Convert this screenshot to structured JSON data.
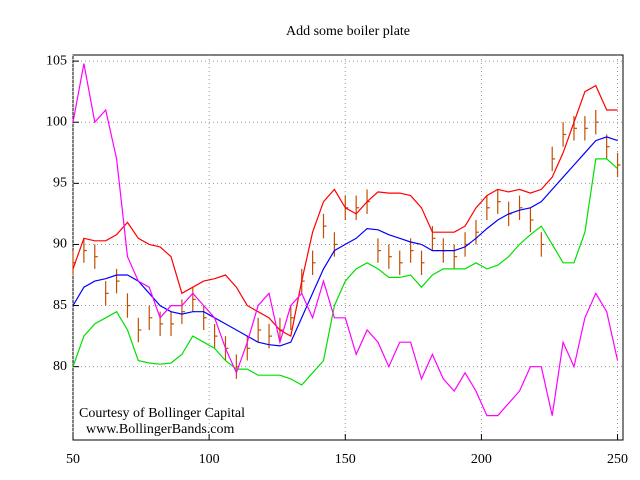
{
  "chart_data": {
    "type": "line",
    "title": "Add some boiler plate",
    "annotations": [
      "Courtesy of Bollinger Capital",
      "www.BollingerBands.com"
    ],
    "xlim": [
      50,
      252
    ],
    "xticks": [
      50,
      100,
      150,
      200,
      250
    ],
    "ylim": [
      74,
      105.5
    ],
    "yticks": [
      80,
      85,
      90,
      95,
      100,
      105
    ],
    "grid": true,
    "x": [
      50,
      54,
      58,
      62,
      66,
      70,
      74,
      78,
      82,
      86,
      90,
      94,
      98,
      102,
      106,
      110,
      114,
      118,
      122,
      126,
      130,
      134,
      138,
      142,
      146,
      150,
      154,
      158,
      162,
      166,
      170,
      174,
      178,
      182,
      186,
      190,
      194,
      198,
      202,
      206,
      210,
      214,
      218,
      222,
      226,
      230,
      234,
      238,
      242,
      246,
      250
    ],
    "series": [
      {
        "color": "#ff0000",
        "values": [
          88,
          90.5,
          90.3,
          90.3,
          90.8,
          91.8,
          90.5,
          90,
          89.8,
          89,
          86,
          86.5,
          87,
          87.2,
          87.5,
          86.5,
          85,
          84.5,
          84,
          83,
          82.5,
          87,
          91,
          93.5,
          94.5,
          93,
          92.5,
          93.5,
          94.3,
          94.2,
          94.2,
          94,
          93,
          91,
          91,
          91,
          91.5,
          93,
          94,
          94.5,
          94.3,
          94.5,
          94.2,
          94.5,
          95.5,
          97.5,
          100,
          102.5,
          103,
          101,
          101
        ]
      },
      {
        "color": "#0000ff",
        "values": [
          85,
          86.5,
          87,
          87.2,
          87.5,
          87.5,
          87,
          86,
          85,
          84.5,
          84.3,
          84.5,
          84.5,
          84,
          83.5,
          83,
          82.5,
          82,
          81.8,
          81.7,
          82,
          84,
          86,
          88,
          89.5,
          90,
          90.5,
          91.3,
          91.2,
          90.8,
          90.5,
          90.2,
          90,
          89.5,
          89.5,
          89.5,
          89.8,
          90.5,
          91.3,
          92,
          92.5,
          92.8,
          93,
          93.5,
          94.5,
          95.5,
          96.5,
          97.5,
          98.5,
          98.8,
          98.5
        ]
      },
      {
        "color": "#00e000",
        "values": [
          80,
          82.5,
          83.5,
          84,
          84.5,
          83,
          80.5,
          80.3,
          80.2,
          80.3,
          81,
          82.5,
          82,
          81.5,
          80.5,
          79.8,
          79.8,
          79.3,
          79.3,
          79.3,
          79,
          78.5,
          79.5,
          80.5,
          85,
          87,
          88,
          88.5,
          88,
          87.3,
          87.3,
          87.5,
          86.5,
          87.5,
          88,
          88,
          88,
          88.5,
          88,
          88.3,
          89,
          90,
          90.8,
          91.5,
          90,
          88.5,
          88.5,
          91,
          97,
          97,
          96.2
        ]
      },
      {
        "color": "#ff00ff",
        "values": [
          100,
          104.8,
          100,
          101,
          97,
          89,
          87,
          86.5,
          84,
          85,
          85,
          86,
          85,
          84,
          81.5,
          79.5,
          82,
          85,
          86,
          82,
          85,
          86,
          84,
          87,
          84,
          84,
          81,
          83,
          82,
          80,
          82,
          82,
          79,
          81,
          79,
          78,
          79.5,
          78,
          76,
          76,
          77,
          78,
          80,
          80,
          76,
          82,
          80,
          84,
          86,
          84.5,
          80.5
        ]
      }
    ],
    "ohlc": {
      "color": "#c05000",
      "high": [
        89.5,
        90.5,
        90,
        87,
        88,
        86,
        84,
        85,
        84.5,
        84.5,
        85.5,
        86.5,
        85,
        83.5,
        82.5,
        81,
        82.5,
        84,
        83.5,
        84,
        85,
        88,
        89.5,
        92.5,
        91,
        94,
        94,
        94.5,
        90.5,
        90,
        89.5,
        90.5,
        89.5,
        91.5,
        90.5,
        90,
        91,
        92,
        94,
        94.5,
        93.5,
        94,
        93,
        91,
        98,
        100,
        100.5,
        100.5,
        101,
        99,
        97.5
      ],
      "low": [
        87.5,
        88.5,
        88,
        85,
        86,
        84,
        82,
        83,
        82.5,
        82.5,
        83.5,
        84.5,
        83,
        81.5,
        80.5,
        79,
        80.5,
        82,
        81.5,
        82,
        83,
        86,
        87.5,
        90.5,
        89,
        92,
        92,
        92.5,
        88.5,
        88,
        87.5,
        88.5,
        87.5,
        89.5,
        88.5,
        88,
        89,
        90,
        92,
        92.5,
        91.5,
        92,
        91,
        89,
        96,
        98,
        98.5,
        98.5,
        99,
        97,
        95.5
      ],
      "close": [
        88.5,
        89.5,
        89,
        86,
        87,
        85,
        83,
        84,
        83.5,
        83.5,
        84.5,
        85.5,
        84,
        82.5,
        81.5,
        80,
        81.5,
        83,
        82.5,
        83,
        84,
        87,
        88.5,
        91.5,
        90,
        93,
        93,
        93.5,
        89.5,
        89,
        88.5,
        89.5,
        88.5,
        90.5,
        89.5,
        89,
        90,
        91,
        93,
        93.5,
        92.5,
        93,
        92,
        90,
        97,
        99,
        99.5,
        99.5,
        100,
        98,
        96.5
      ]
    }
  }
}
